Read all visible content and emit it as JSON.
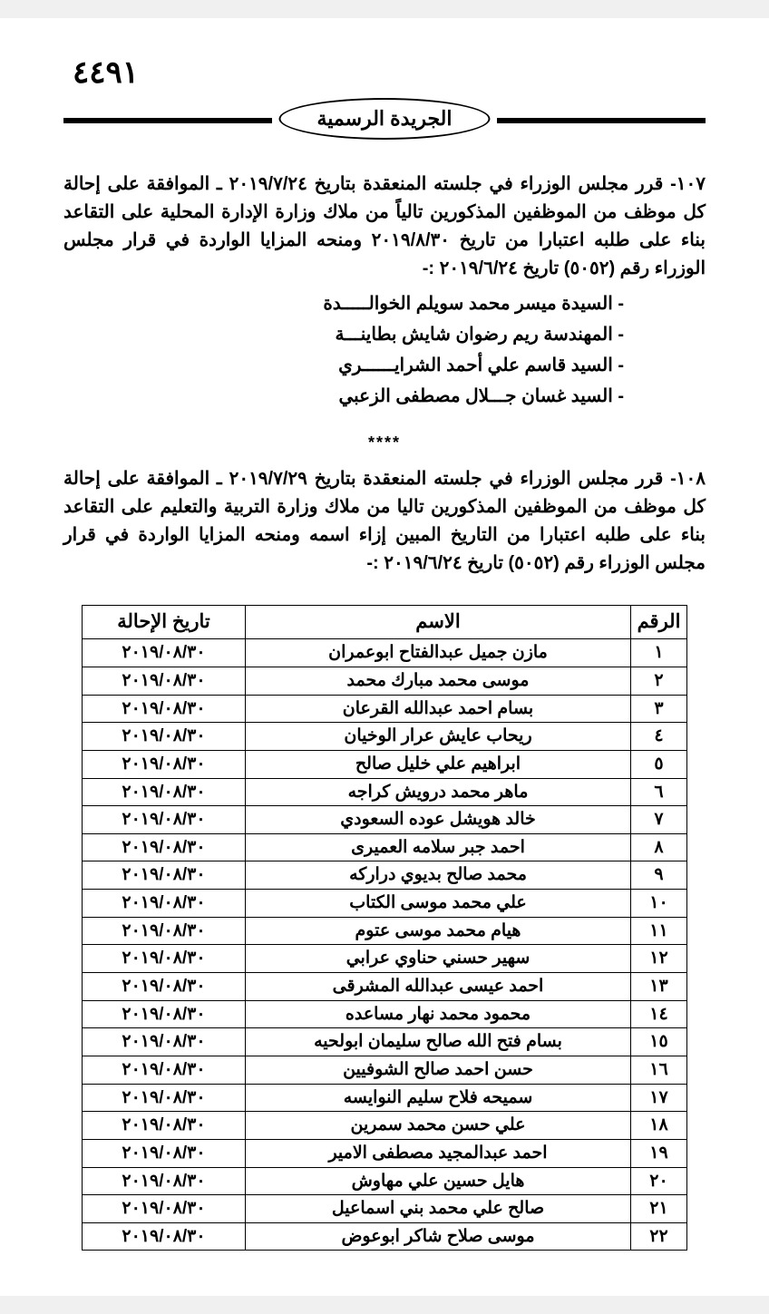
{
  "page_number": "٤٤٩١",
  "header_badge": "الجريدة الرسمية",
  "decision107": {
    "number": "١٠٧-",
    "text": "قرر مجلس الوزراء في جلسته المنعقدة بتاريخ ٢٠١٩/٧/٢٤ ـ الموافقة على إحالة كل موظف من الموظفين المذكورين تالياً من ملاك وزارة الإدارة المحلية على التقاعد بناء على طلبه اعتبارا من تاريخ ٢٠١٩/٨/٣٠ ومنحه المزايا الواردة في قرار مجلس الوزراء رقم (٥٠٥٢) تاريخ ٢٠١٩/٦/٢٤ :-",
    "names": [
      "السيدة ميسر محمد سويلم الخوالـــــدة",
      "المهندسة ريم رضوان شايش بطاينـــة",
      "السيد قاسم علي أحمد الشرايــــــري",
      "السيد غسان جـــلال مصطفى الزعبي"
    ]
  },
  "separator": "****",
  "decision108": {
    "number": "١٠٨-",
    "text": "قرر مجلس الوزراء في جلسته المنعقدة بتاريخ ٢٠١٩/٧/٢٩ ـ الموافقة على إحالة كل موظف من الموظفين المذكورين تاليا من ملاك وزارة التربية والتعليم على التقاعد بناء على طلبه اعتبارا من التاريخ المبين إزاء اسمه ومنحه المزايا الواردة في قرار مجلس الوزراء رقم (٥٠٥٢) تاريخ ٢٠١٩/٦/٢٤ :-"
  },
  "table": {
    "headers": {
      "num": "الرقم",
      "name": "الاسم",
      "date": "تاريخ الإحالة"
    },
    "rows": [
      {
        "num": "١",
        "name": "مازن جميل عبدالفتاح ابوعمران",
        "date": "٢٠١٩/٠٨/٣٠"
      },
      {
        "num": "٢",
        "name": "موسى محمد مبارك محمد",
        "date": "٢٠١٩/٠٨/٣٠"
      },
      {
        "num": "٣",
        "name": "بسام احمد عبدالله القرعان",
        "date": "٢٠١٩/٠٨/٣٠"
      },
      {
        "num": "٤",
        "name": "ريحاب عايش عرار الوخيان",
        "date": "٢٠١٩/٠٨/٣٠"
      },
      {
        "num": "٥",
        "name": "ابراهيم علي خليل صالح",
        "date": "٢٠١٩/٠٨/٣٠"
      },
      {
        "num": "٦",
        "name": "ماهر محمد درويش كراجه",
        "date": "٢٠١٩/٠٨/٣٠"
      },
      {
        "num": "٧",
        "name": "خالد هويشل عوده السعودي",
        "date": "٢٠١٩/٠٨/٣٠"
      },
      {
        "num": "٨",
        "name": "احمد جبر سلامه العميرى",
        "date": "٢٠١٩/٠٨/٣٠"
      },
      {
        "num": "٩",
        "name": "محمد صالح بديوي دراركه",
        "date": "٢٠١٩/٠٨/٣٠"
      },
      {
        "num": "١٠",
        "name": "علي محمد موسى الكتاب",
        "date": "٢٠١٩/٠٨/٣٠"
      },
      {
        "num": "١١",
        "name": "هيام محمد موسى عتوم",
        "date": "٢٠١٩/٠٨/٣٠"
      },
      {
        "num": "١٢",
        "name": "سهير حسني حناوي عرابي",
        "date": "٢٠١٩/٠٨/٣٠"
      },
      {
        "num": "١٣",
        "name": "احمد عيسى عبدالله المشرقى",
        "date": "٢٠١٩/٠٨/٣٠"
      },
      {
        "num": "١٤",
        "name": "محمود محمد نهار مساعده",
        "date": "٢٠١٩/٠٨/٣٠"
      },
      {
        "num": "١٥",
        "name": "بسام فتح الله صالح سليمان ابولحيه",
        "date": "٢٠١٩/٠٨/٣٠"
      },
      {
        "num": "١٦",
        "name": "حسن احمد صالح الشوفيين",
        "date": "٢٠١٩/٠٨/٣٠"
      },
      {
        "num": "١٧",
        "name": "سميحه فلاح سليم النوايسه",
        "date": "٢٠١٩/٠٨/٣٠"
      },
      {
        "num": "١٨",
        "name": "علي حسن محمد سمرين",
        "date": "٢٠١٩/٠٨/٣٠"
      },
      {
        "num": "١٩",
        "name": "احمد عبدالمجيد مصطفى الامير",
        "date": "٢٠١٩/٠٨/٣٠"
      },
      {
        "num": "٢٠",
        "name": "هايل حسين علي مهاوش",
        "date": "٢٠١٩/٠٨/٣٠"
      },
      {
        "num": "٢١",
        "name": "صالح علي محمد بني اسماعيل",
        "date": "٢٠١٩/٠٨/٣٠"
      },
      {
        "num": "٢٢",
        "name": "موسى صلاح شاكر ابوعوض",
        "date": "٢٠١٩/٠٨/٣٠"
      }
    ]
  }
}
